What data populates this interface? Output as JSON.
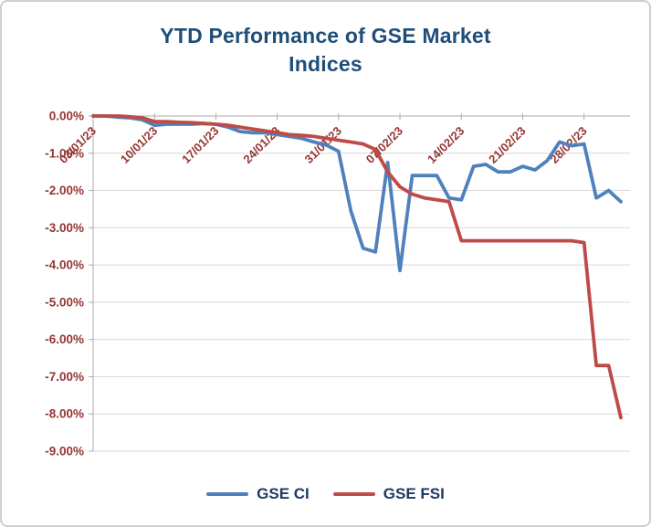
{
  "chart_data": {
    "type": "line",
    "title": "YTD Performance of GSE Market Indices",
    "xlabel": "",
    "ylabel": "",
    "ylim": [
      0,
      -9
    ],
    "grid": true,
    "legend_position": "bottom",
    "y_tick_labels": [
      "0.00%",
      "-1.00%",
      "-2.00%",
      "-3.00%",
      "-4.00%",
      "-5.00%",
      "-6.00%",
      "-7.00%",
      "-8.00%",
      "-9.00%"
    ],
    "x_tick_labels": [
      "03/01/23",
      "10/01/23",
      "17/01/23",
      "24/01/23",
      "31/01/23",
      "07/02/23",
      "14/02/23",
      "21/02/23",
      "28/02/23"
    ],
    "x_tick_indices": [
      0,
      5,
      10,
      15,
      20,
      25,
      30,
      35,
      40
    ],
    "x": [
      "03/01/23",
      "04/01/23",
      "05/01/23",
      "06/01/23",
      "09/01/23",
      "10/01/23",
      "11/01/23",
      "12/01/23",
      "13/01/23",
      "16/01/23",
      "17/01/23",
      "18/01/23",
      "19/01/23",
      "20/01/23",
      "23/01/23",
      "24/01/23",
      "25/01/23",
      "26/01/23",
      "27/01/23",
      "30/01/23",
      "31/01/23",
      "01/02/23",
      "02/02/23",
      "03/02/23",
      "06/02/23",
      "07/02/23",
      "08/02/23",
      "09/02/23",
      "10/02/23",
      "13/02/23",
      "14/02/23",
      "15/02/23",
      "16/02/23",
      "17/02/23",
      "20/02/23",
      "21/02/23",
      "22/02/23",
      "23/02/23",
      "24/02/23",
      "27/02/23",
      "28/02/23",
      "01/03/23",
      "02/03/23",
      "03/03/23"
    ],
    "series": [
      {
        "name": "GSE CI",
        "color": "#4F81BD",
        "values": [
          0.0,
          0.0,
          -0.03,
          -0.05,
          -0.1,
          -0.25,
          -0.22,
          -0.22,
          -0.22,
          -0.2,
          -0.22,
          -0.3,
          -0.42,
          -0.45,
          -0.45,
          -0.5,
          -0.55,
          -0.6,
          -0.7,
          -0.78,
          -0.95,
          -2.55,
          -3.55,
          -3.65,
          -1.25,
          -4.15,
          -1.6,
          -1.6,
          -1.6,
          -2.2,
          -2.25,
          -1.35,
          -1.3,
          -1.5,
          -1.5,
          -1.35,
          -1.45,
          -1.2,
          -0.7,
          -0.8,
          -0.75,
          -2.2,
          -2.0,
          -2.3
        ]
      },
      {
        "name": "GSE FSI",
        "color": "#BE4B48",
        "values": [
          0.0,
          0.0,
          0.0,
          -0.02,
          -0.05,
          -0.15,
          -0.15,
          -0.17,
          -0.18,
          -0.2,
          -0.22,
          -0.25,
          -0.3,
          -0.35,
          -0.4,
          -0.45,
          -0.5,
          -0.52,
          -0.55,
          -0.6,
          -0.65,
          -0.7,
          -0.75,
          -0.9,
          -1.5,
          -1.9,
          -2.1,
          -2.2,
          -2.25,
          -2.3,
          -3.35,
          -3.35,
          -3.35,
          -3.35,
          -3.35,
          -3.35,
          -3.35,
          -3.35,
          -3.35,
          -3.35,
          -3.4,
          -6.7,
          -6.7,
          -8.1
        ]
      }
    ],
    "colors": {
      "grid": "#D9D9D9",
      "axis": "#ABABAB",
      "axis_labels": "#943634",
      "title": "#1F4E79",
      "legend_text": "#1F3864"
    }
  }
}
